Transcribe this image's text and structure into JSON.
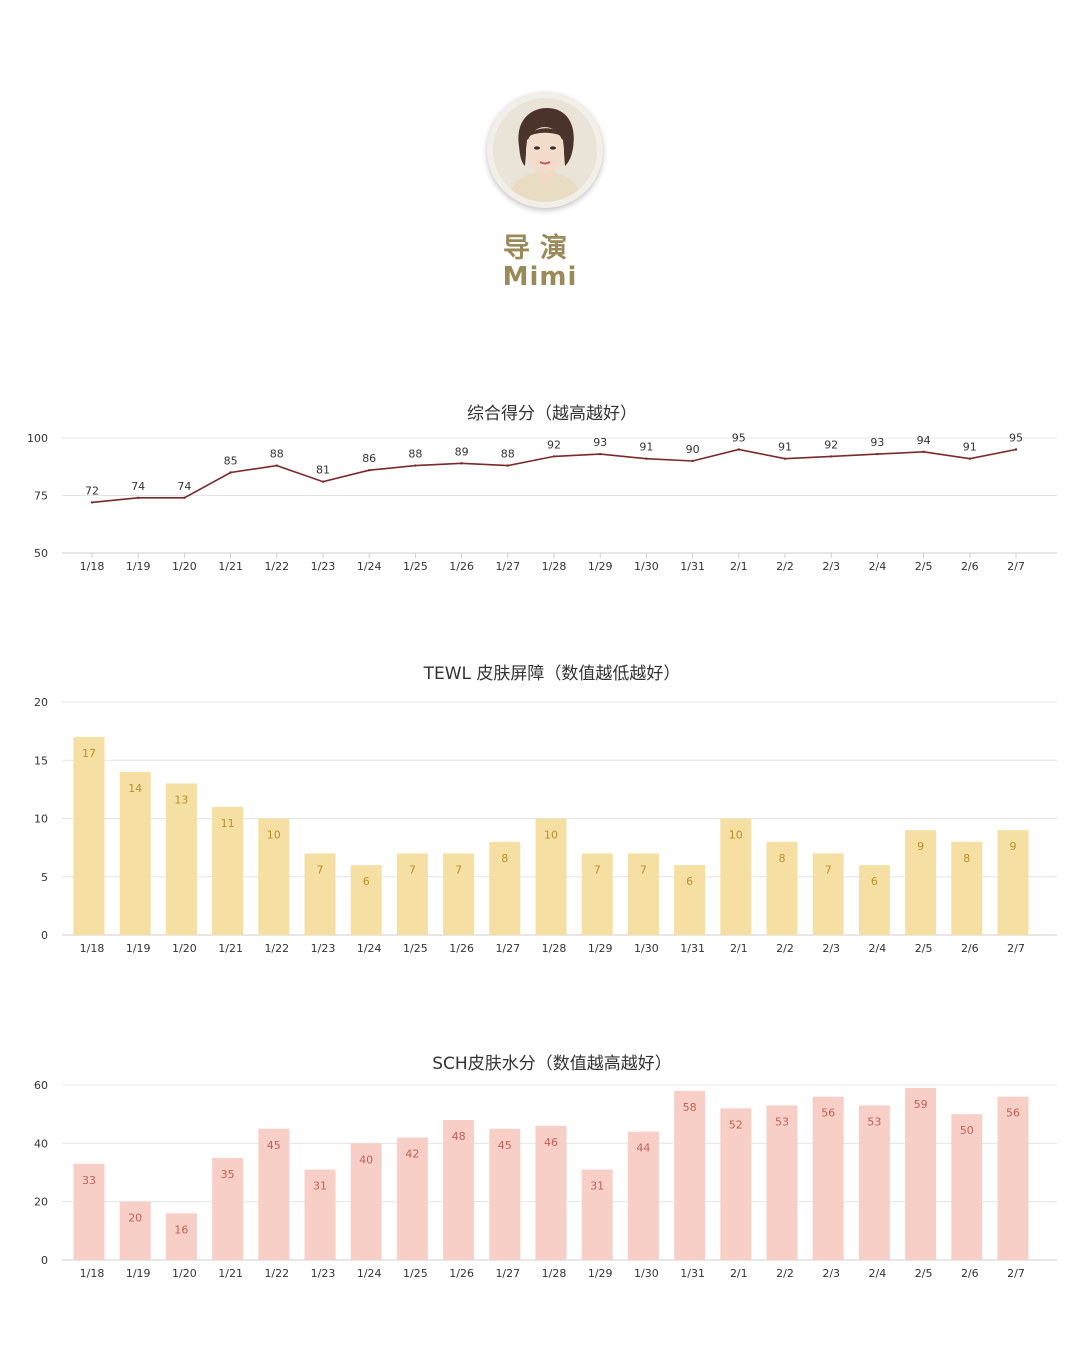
{
  "profile": {
    "role": "导演",
    "name": "Mimi",
    "avatar_icon": "person-portrait-icon"
  },
  "chart_data": [
    {
      "type": "line",
      "title": "综合得分（越高越好）",
      "categories": [
        "1/18",
        "1/19",
        "1/20",
        "1/21",
        "1/22",
        "1/23",
        "1/24",
        "1/25",
        "1/26",
        "1/27",
        "1/28",
        "1/29",
        "1/30",
        "1/31",
        "2/1",
        "2/2",
        "2/3",
        "2/4",
        "2/5",
        "2/6",
        "2/7"
      ],
      "values": [
        72,
        74,
        74,
        85,
        88,
        81,
        86,
        88,
        89,
        88,
        92,
        93,
        91,
        90,
        95,
        91,
        92,
        93,
        94,
        91,
        95
      ],
      "yticks": [
        "50",
        "75",
        "100"
      ],
      "ylim": [
        50,
        100
      ],
      "grid": true,
      "color": "#7a2a2a"
    },
    {
      "type": "bar",
      "title": "TEWL 皮肤屏障（数值越低越好）",
      "categories": [
        "1/18",
        "1/19",
        "1/20",
        "1/21",
        "1/22",
        "1/23",
        "1/24",
        "1/25",
        "1/26",
        "1/27",
        "1/28",
        "1/29",
        "1/30",
        "1/31",
        "2/1",
        "2/2",
        "2/3",
        "2/4",
        "2/5",
        "2/6",
        "2/7"
      ],
      "values": [
        17,
        14,
        13,
        11,
        10,
        7,
        6,
        7,
        7,
        8,
        10,
        7,
        7,
        6,
        10,
        8,
        7,
        6,
        9,
        8,
        9
      ],
      "yticks": [
        "0",
        "5",
        "10",
        "15",
        "20"
      ],
      "ylim": [
        0,
        20
      ],
      "grid": true,
      "color": "#f5dfa3",
      "label_color": "#b8902a"
    },
    {
      "type": "bar",
      "title": "SCH皮肤水分（数值越高越好）",
      "categories": [
        "1/18",
        "1/19",
        "1/20",
        "1/21",
        "1/22",
        "1/23",
        "1/24",
        "1/25",
        "1/26",
        "1/27",
        "1/28",
        "1/29",
        "1/30",
        "1/31",
        "2/1",
        "2/2",
        "2/3",
        "2/4",
        "2/5",
        "2/6",
        "2/7"
      ],
      "values": [
        33,
        20,
        16,
        35,
        45,
        31,
        40,
        42,
        48,
        45,
        46,
        31,
        44,
        58,
        52,
        53,
        56,
        53,
        59,
        50,
        56
      ],
      "yticks": [
        "0",
        "20",
        "40",
        "60"
      ],
      "ylim": [
        0,
        60
      ],
      "grid": true,
      "color": "#f7cfc6",
      "label_color": "#c0605a"
    }
  ]
}
